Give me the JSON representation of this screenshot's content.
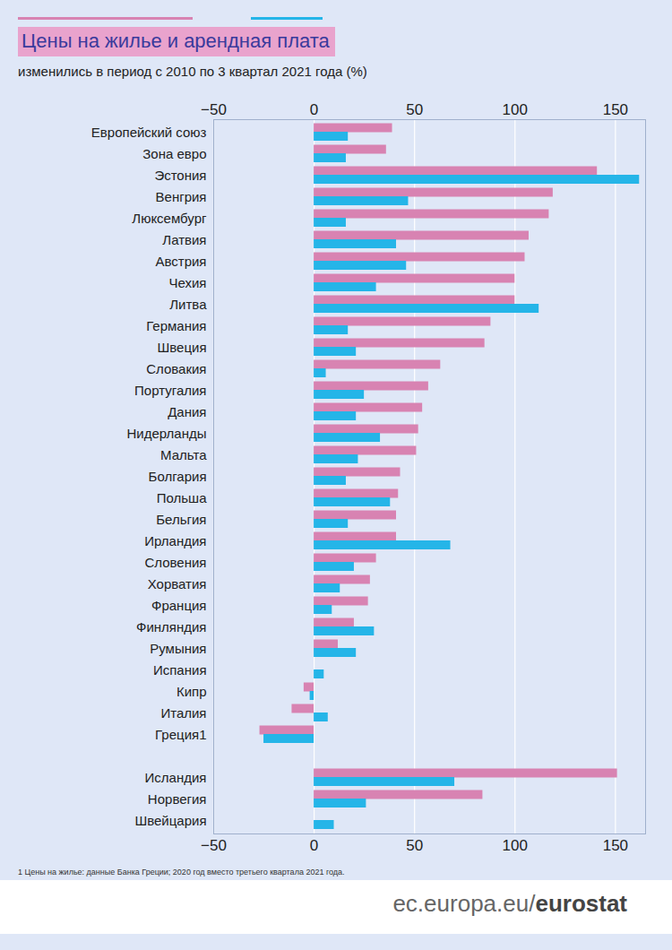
{
  "chart_data": {
    "type": "bar",
    "orientation": "horizontal",
    "title": "Цены на жилье и арендная плата",
    "subtitle": "изменились в период с 2010 по 3 квартал 2021 года (%)",
    "footnote": "1 Цены на жилье: данные Банка Греции; 2020 год вместо третьего квартала 2021 года.",
    "source": "ec.europa.eu/eurostat",
    "categories": [
      "Европейский союз",
      "Зона евро",
      "Эстония",
      "Венгрия",
      "Люксембург",
      "Латвия",
      "Австрия",
      "Чехия",
      "Литва",
      "Германия",
      "Швеция",
      "Словакия",
      "Португалия",
      "Дания",
      "Нидерланды",
      "Мальта",
      "Болгария",
      "Польша",
      "Бельгия",
      "Ирландия",
      "Словения",
      "Хорватия",
      "Франция",
      "Финляндия",
      "Румыния",
      "Испания",
      "Кипр",
      "Италия",
      "Греция1",
      null,
      "Исландия",
      "Норвегия",
      "Швейцария"
    ],
    "series": [
      {
        "color": "#d883b2",
        "values": [
          39,
          36,
          141,
          119,
          117,
          107,
          105,
          100,
          100,
          88,
          85,
          63,
          57,
          54,
          52,
          51,
          43,
          42,
          41,
          41,
          31,
          28,
          27,
          20,
          12,
          0,
          -5,
          -11,
          -27,
          null,
          151,
          84,
          null
        ]
      },
      {
        "color": "#25b5e8",
        "values": [
          17,
          16,
          162,
          47,
          16,
          41,
          46,
          31,
          112,
          17,
          21,
          6,
          25,
          21,
          33,
          22,
          16,
          38,
          17,
          68,
          20,
          13,
          9,
          30,
          21,
          5,
          -2,
          7,
          -25,
          null,
          70,
          26,
          10
        ]
      }
    ],
    "xlim": [
      -50,
      165
    ],
    "xticks": [
      -50,
      0,
      50,
      100,
      150
    ],
    "grid": true
  }
}
